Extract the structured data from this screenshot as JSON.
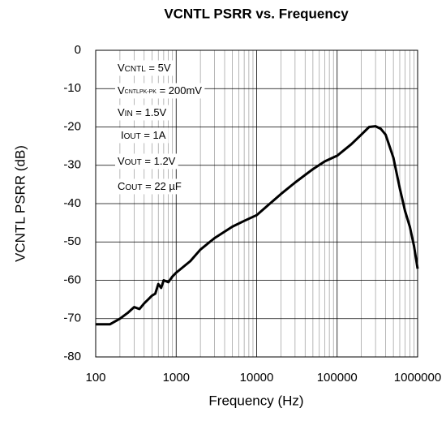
{
  "chart_data": {
    "type": "line",
    "title": "VCNTL PSRR vs. Frequency",
    "x_label": "Frequency (Hz)",
    "y_label": "VCNTL PSRR (dB)",
    "x_scale": "log",
    "grid": true,
    "minor_grid": true,
    "xlim": [
      100,
      1000000
    ],
    "xticks": [
      100,
      1000,
      10000,
      100000,
      1000000
    ],
    "ylim": [
      -80,
      0
    ],
    "yticks": [
      0,
      -10,
      -20,
      -30,
      -40,
      -50,
      -60,
      -70,
      -80
    ],
    "annotations": [
      [
        "V",
        "CNTL",
        " = 5V"
      ],
      [
        "V",
        "CNTLPK-PK",
        " = 200mV"
      ],
      [
        "V",
        "IN",
        " = 1.5V"
      ],
      [
        "I",
        "OUT",
        " = 1A"
      ],
      [
        "V",
        "OUT",
        " = 1.2V"
      ],
      [
        "C",
        "OUT",
        " = 22 µF"
      ]
    ],
    "series": [
      {
        "color": "#000000",
        "x": [
          100,
          150,
          200,
          250,
          300,
          350,
          400,
          450,
          500,
          550,
          600,
          650,
          700,
          800,
          900,
          1000,
          1500,
          2000,
          3000,
          5000,
          7000,
          10000,
          20000,
          30000,
          50000,
          70000,
          100000,
          150000,
          200000,
          250000,
          300000,
          350000,
          400000,
          500000,
          600000,
          700000,
          800000,
          900000,
          1000000
        ],
        "values": [
          -71.5,
          -71.5,
          -70,
          -68.5,
          -67,
          -67.5,
          -66,
          -65,
          -64,
          -63.5,
          -61,
          -62,
          -60,
          -60.5,
          -59,
          -58,
          -55,
          -52,
          -49,
          -46,
          -44.5,
          -43,
          -37.5,
          -34.5,
          -31,
          -29,
          -27.5,
          -24.5,
          -22,
          -20,
          -19.8,
          -20.5,
          -22,
          -28,
          -36,
          -42,
          -46,
          -51,
          -57
        ]
      }
    ]
  }
}
